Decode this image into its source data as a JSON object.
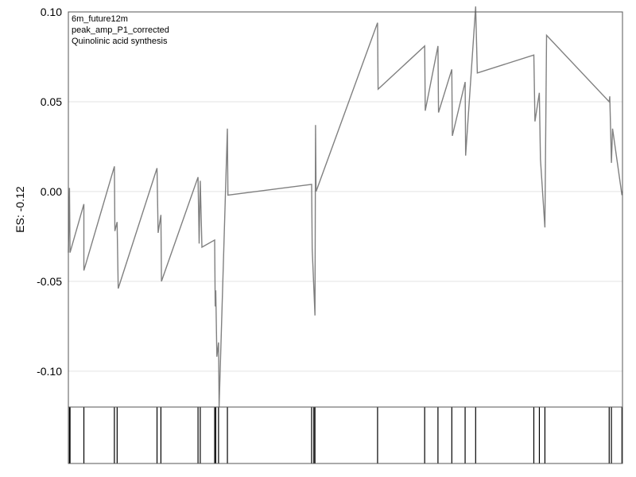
{
  "chart_data": {
    "type": "line",
    "annotations": [
      "6m_future12m",
      "peak_amp_P1_corrected",
      "Quinolinic acid synthesis"
    ],
    "ylabel": "ES: -0.12",
    "xlabel": "",
    "ylim": [
      -0.12,
      0.1
    ],
    "xlim": [
      0,
      100
    ],
    "yticks": [
      0.1,
      0.05,
      0.0,
      -0.05,
      -0.1
    ],
    "ytick_labels": [
      "0.10",
      "0.05",
      "0.00",
      "-0.05",
      "-0.10"
    ],
    "grid": true,
    "colors": {
      "line": "#808080",
      "grid": "#e3e3e3",
      "frame": "#555555",
      "hits": "#000000"
    },
    "series": [
      {
        "x": [
          0.0,
          0.2,
          0.3,
          2.8,
          2.8,
          8.3,
          8.4,
          8.8,
          9.0,
          16.0,
          16.2,
          16.7,
          16.8,
          23.4,
          23.6,
          23.8,
          24.1,
          26.4,
          26.5,
          26.6,
          26.8,
          27.1,
          27.2,
          28.7,
          28.8,
          43.9,
          44.0,
          44.5,
          44.6,
          44.7,
          55.8,
          55.9,
          64.3,
          64.4,
          66.7,
          66.8,
          69.2,
          69.3,
          71.6,
          71.7,
          73.5,
          73.8,
          84.0,
          84.2,
          85.0,
          85.2,
          86.0,
          86.3,
          97.6,
          97.7,
          98.0,
          98.2,
          99.9,
          100.0
        ],
        "y": [
          -0.034,
          0.002,
          -0.034,
          -0.007,
          -0.044,
          0.014,
          -0.022,
          -0.017,
          -0.054,
          0.013,
          -0.023,
          -0.013,
          -0.05,
          0.008,
          -0.029,
          0.006,
          -0.031,
          -0.027,
          -0.064,
          -0.055,
          -0.092,
          -0.084,
          -0.12,
          0.035,
          -0.002,
          0.004,
          -0.032,
          -0.069,
          0.037,
          0.0,
          0.094,
          0.057,
          0.081,
          0.045,
          0.081,
          0.044,
          0.068,
          0.031,
          0.061,
          0.02,
          0.103,
          0.066,
          0.076,
          0.039,
          0.055,
          0.018,
          -0.02,
          0.087,
          0.05,
          0.053,
          0.016,
          0.035,
          -0.002,
          0.0
        ]
      }
    ],
    "hits": [
      0.2,
      0.3,
      2.8,
      8.3,
      8.8,
      16.0,
      16.7,
      23.4,
      23.8,
      26.4,
      26.6,
      27.1,
      28.7,
      43.9,
      44.3,
      44.5,
      55.8,
      64.3,
      66.7,
      69.2,
      71.6,
      73.5,
      84.0,
      85.0,
      86.0,
      97.6,
      98.0,
      99.9
    ]
  }
}
